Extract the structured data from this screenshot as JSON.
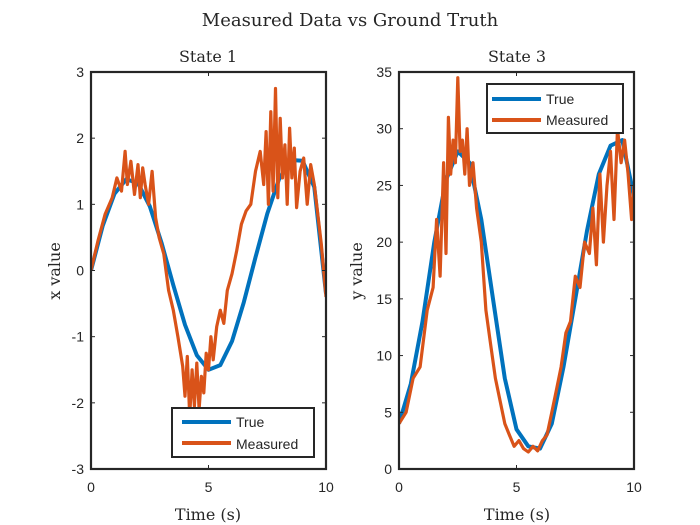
{
  "figure": {
    "title": "Measured Data vs Ground Truth"
  },
  "colors": {
    "true": "#0072BD",
    "measured": "#D95319",
    "axis": "#262626"
  },
  "chart_data": [
    {
      "type": "line",
      "title": "State 1",
      "xlabel": "Time (s)",
      "ylabel": "x value",
      "xlim": [
        0,
        10
      ],
      "ylim": [
        -3,
        3
      ],
      "xticks": [
        "0",
        "5",
        "10"
      ],
      "yticks": [
        "-3",
        "-2",
        "-1",
        "0",
        "1",
        "2",
        "3"
      ],
      "xtick_values": [
        0,
        5,
        10
      ],
      "ytick_values": [
        -3,
        -2,
        -1,
        0,
        1,
        2,
        3
      ],
      "legend": {
        "location": "bottom-right",
        "entries": [
          "True",
          "Measured"
        ]
      },
      "series": [
        {
          "name": "True",
          "x": [
            0,
            0.5,
            1,
            1.5,
            2,
            2.5,
            3,
            3.5,
            4,
            4.5,
            5,
            5.5,
            6,
            6.5,
            7,
            7.5,
            8,
            8.5,
            9,
            9.5,
            10
          ],
          "y": [
            0,
            0.68,
            1.16,
            1.38,
            1.32,
            0.97,
            0.42,
            -0.22,
            -0.82,
            -1.28,
            -1.5,
            -1.43,
            -1.07,
            -0.48,
            0.2,
            0.86,
            1.38,
            1.67,
            1.66,
            1.26,
            -0.35
          ]
        },
        {
          "name": "Measured",
          "x": [
            0,
            0.3,
            0.6,
            0.9,
            1.1,
            1.3,
            1.45,
            1.55,
            1.7,
            1.85,
            2.0,
            2.1,
            2.2,
            2.3,
            2.45,
            2.6,
            2.75,
            2.9,
            3.1,
            3.3,
            3.5,
            3.7,
            3.9,
            4.0,
            4.1,
            4.2,
            4.3,
            4.4,
            4.5,
            4.6,
            4.7,
            4.8,
            4.9,
            5.0,
            5.1,
            5.2,
            5.35,
            5.5,
            5.65,
            5.8,
            6.0,
            6.2,
            6.4,
            6.6,
            6.8,
            7.0,
            7.2,
            7.35,
            7.45,
            7.55,
            7.65,
            7.75,
            7.85,
            7.95,
            8.05,
            8.15,
            8.25,
            8.35,
            8.45,
            8.55,
            8.65,
            8.75,
            8.9,
            9.05,
            9.2,
            9.35,
            9.5,
            9.65,
            9.8,
            10.0
          ],
          "y": [
            0,
            0.45,
            0.85,
            1.1,
            1.4,
            1.2,
            1.8,
            1.3,
            1.65,
            1.15,
            1.6,
            1.1,
            1.55,
            1.3,
            1.0,
            1.5,
            0.8,
            0.5,
            0.25,
            -0.3,
            -0.6,
            -1.0,
            -1.45,
            -1.9,
            -1.3,
            -2.2,
            -1.5,
            -2.05,
            -1.4,
            -2.1,
            -1.6,
            -1.85,
            -1.25,
            -1.5,
            -1.0,
            -1.35,
            -0.85,
            -0.6,
            -0.8,
            -0.3,
            -0.05,
            0.3,
            0.7,
            0.9,
            1.0,
            1.5,
            1.8,
            1.3,
            2.1,
            1.0,
            2.4,
            1.2,
            2.75,
            1.1,
            2.3,
            1.4,
            1.9,
            1.0,
            2.15,
            1.4,
            1.85,
            0.95,
            1.5,
            1.7,
            1.0,
            1.6,
            1.3,
            0.85,
            0.4,
            -0.4
          ]
        }
      ]
    },
    {
      "type": "line",
      "title": "State 3",
      "xlabel": "Time (s)",
      "ylabel": "y value",
      "xlim": [
        0,
        10
      ],
      "ylim": [
        0,
        35
      ],
      "xticks": [
        "0",
        "5",
        "10"
      ],
      "yticks": [
        "0",
        "5",
        "10",
        "15",
        "20",
        "25",
        "30",
        "35"
      ],
      "xtick_values": [
        0,
        5,
        10
      ],
      "ytick_values": [
        0,
        5,
        10,
        15,
        20,
        25,
        30,
        35
      ],
      "legend": {
        "location": "top-right",
        "entries": [
          "True",
          "Measured"
        ]
      },
      "series": [
        {
          "name": "True",
          "x": [
            0,
            0.5,
            1,
            1.5,
            2,
            2.5,
            3,
            3.5,
            4,
            4.5,
            5,
            5.5,
            6,
            6.5,
            7,
            7.5,
            8,
            8.5,
            9,
            9.5,
            10
          ],
          "y": [
            4,
            7.5,
            13,
            20,
            25.5,
            28,
            27,
            22,
            15,
            8,
            3.5,
            2,
            1.8,
            4,
            9,
            15,
            21,
            26,
            28.5,
            29,
            24
          ]
        },
        {
          "name": "Measured",
          "x": [
            0,
            0.3,
            0.6,
            0.9,
            1.2,
            1.45,
            1.6,
            1.75,
            1.9,
            2.0,
            2.1,
            2.2,
            2.3,
            2.4,
            2.5,
            2.6,
            2.7,
            2.8,
            2.9,
            3.0,
            3.15,
            3.3,
            3.5,
            3.7,
            3.9,
            4.1,
            4.3,
            4.5,
            4.7,
            4.9,
            5.1,
            5.3,
            5.5,
            5.7,
            5.9,
            6.1,
            6.3,
            6.5,
            6.7,
            6.9,
            7.1,
            7.3,
            7.5,
            7.7,
            7.9,
            8.1,
            8.25,
            8.4,
            8.55,
            8.7,
            8.85,
            9.0,
            9.15,
            9.3,
            9.45,
            9.6,
            9.75,
            9.9,
            10.0
          ],
          "y": [
            4,
            5,
            8,
            9,
            14,
            16,
            22,
            17,
            27,
            19,
            31,
            26,
            29,
            27,
            34.5,
            28,
            29,
            26,
            30,
            25,
            27,
            23,
            20,
            14,
            11,
            8,
            6,
            4,
            3,
            2,
            2.5,
            1.8,
            1.5,
            2.0,
            1.6,
            2.5,
            3.0,
            5,
            7,
            9,
            12,
            13,
            17,
            16,
            20,
            19,
            23,
            18,
            26,
            20,
            25,
            28,
            22,
            30,
            27,
            29,
            26,
            22,
            25
          ]
        }
      ]
    }
  ]
}
